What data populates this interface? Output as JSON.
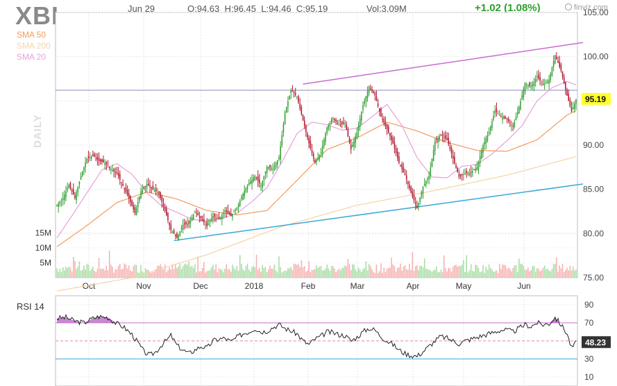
{
  "header": {
    "ticker": "XBI",
    "date": "Jun 29",
    "ohlc": "O:94.63  H:96.45  L:94.46  C:95.19",
    "volume": "Vol:3.09M",
    "change": "+1.02 (1.08%)",
    "brand": "finviz.com"
  },
  "legend": [
    {
      "label": "SMA 50",
      "color": "#f29a5c"
    },
    {
      "label": "SMA 200",
      "color": "#f6d2a6"
    },
    {
      "label": "SMA 20",
      "color": "#e7a0dc"
    }
  ],
  "side_label": "DAILY",
  "colors": {
    "up": "#2e9e2e",
    "down": "#b0142a",
    "vol_up": "#a7dba2",
    "vol_down": "#f4b0ae",
    "channel_top": "#c86ad2",
    "channel_bottom": "#3aa7d8",
    "hline": "#8a8ab8"
  },
  "chart_data": [
    {
      "type": "candlestick",
      "ylim": [
        75,
        105
      ],
      "y_ticks": [
        "105.00",
        "100.00",
        "95.00",
        "90.00",
        "85.00",
        "80.00",
        "75.00"
      ],
      "y_tick_values": [
        105,
        100,
        95,
        90,
        85,
        80,
        75
      ],
      "x_ticks": [
        "Oct",
        "Nov",
        "Dec",
        "2018",
        "Feb",
        "Mar",
        "Apr",
        "May",
        "Jun"
      ],
      "last_price_label": "95.19",
      "last_price": 95.19,
      "horizontal_line": 96.2,
      "volume_ticks": [
        "15M",
        "10M",
        "5M"
      ],
      "volume_tick_values": [
        15,
        10,
        5
      ],
      "price_anchors": [
        [
          0,
          83.2
        ],
        [
          4,
          84.0
        ],
        [
          8,
          85.5
        ],
        [
          12,
          84.0
        ],
        [
          16,
          86.5
        ],
        [
          20,
          88.5
        ],
        [
          24,
          88.8
        ],
        [
          28,
          88.2
        ],
        [
          32,
          88.0
        ],
        [
          36,
          87.3
        ],
        [
          40,
          86.8
        ],
        [
          44,
          85.4
        ],
        [
          48,
          84.0
        ],
        [
          52,
          82.3
        ],
        [
          56,
          84.8
        ],
        [
          60,
          85.6
        ],
        [
          64,
          85.0
        ],
        [
          68,
          84.5
        ],
        [
          72,
          82.6
        ],
        [
          76,
          80.4
        ],
        [
          80,
          79.5
        ],
        [
          84,
          81.0
        ],
        [
          88,
          81.1
        ],
        [
          92,
          82.5
        ],
        [
          96,
          81.7
        ],
        [
          100,
          80.8
        ],
        [
          104,
          82.0
        ],
        [
          108,
          81.6
        ],
        [
          112,
          82.6
        ],
        [
          116,
          82.0
        ],
        [
          120,
          82.9
        ],
        [
          124,
          84.5
        ],
        [
          128,
          85.7
        ],
        [
          132,
          86.5
        ],
        [
          136,
          85.4
        ],
        [
          140,
          87.6
        ],
        [
          144,
          87.3
        ],
        [
          148,
          88.6
        ],
        [
          152,
          93.7
        ],
        [
          156,
          96.2
        ],
        [
          160,
          95.5
        ],
        [
          164,
          92.8
        ],
        [
          168,
          90.2
        ],
        [
          172,
          88.0
        ],
        [
          176,
          89.2
        ],
        [
          180,
          92.0
        ],
        [
          184,
          93.0
        ],
        [
          188,
          92.3
        ],
        [
          192,
          92.5
        ],
        [
          196,
          89.5
        ],
        [
          200,
          91.5
        ],
        [
          204,
          94.5
        ],
        [
          208,
          96.6
        ],
        [
          212,
          95.6
        ],
        [
          216,
          93.2
        ],
        [
          220,
          91.8
        ],
        [
          224,
          90.2
        ],
        [
          228,
          88.0
        ],
        [
          232,
          86.6
        ],
        [
          236,
          84.6
        ],
        [
          240,
          82.9
        ],
        [
          244,
          85.3
        ],
        [
          248,
          86.5
        ],
        [
          252,
          90.4
        ],
        [
          256,
          91.2
        ],
        [
          260,
          90.6
        ],
        [
          264,
          88.5
        ],
        [
          268,
          86.4
        ],
        [
          272,
          86.8
        ],
        [
          276,
          86.9
        ],
        [
          280,
          87.5
        ],
        [
          284,
          90.0
        ],
        [
          288,
          91.5
        ],
        [
          292,
          93.9
        ],
        [
          296,
          93.2
        ],
        [
          300,
          92.9
        ],
        [
          304,
          92.1
        ],
        [
          308,
          94.3
        ],
        [
          312,
          97.0
        ],
        [
          316,
          96.6
        ],
        [
          320,
          97.8
        ],
        [
          324,
          96.8
        ],
        [
          328,
          97.4
        ],
        [
          332,
          100.2
        ],
        [
          336,
          98.4
        ],
        [
          340,
          95.6
        ],
        [
          343,
          93.8
        ],
        [
          346,
          95.19
        ]
      ],
      "sma20_anchors": [
        [
          0,
          79.5
        ],
        [
          10,
          82.0
        ],
        [
          20,
          84.6
        ],
        [
          30,
          87.2
        ],
        [
          40,
          87.9
        ],
        [
          50,
          86.7
        ],
        [
          60,
          84.6
        ],
        [
          70,
          83.1
        ],
        [
          80,
          82.4
        ],
        [
          90,
          81.6
        ],
        [
          100,
          81.4
        ],
        [
          110,
          81.7
        ],
        [
          120,
          82.3
        ],
        [
          130,
          83.6
        ],
        [
          140,
          85.2
        ],
        [
          150,
          88.1
        ],
        [
          160,
          91.3
        ],
        [
          170,
          92.6
        ],
        [
          180,
          92.3
        ],
        [
          190,
          91.7
        ],
        [
          200,
          91.9
        ],
        [
          210,
          93.2
        ],
        [
          220,
          94.6
        ],
        [
          230,
          92.2
        ],
        [
          240,
          88.6
        ],
        [
          250,
          86.4
        ],
        [
          260,
          86.3
        ],
        [
          270,
          87.6
        ],
        [
          280,
          87.8
        ],
        [
          290,
          89.0
        ],
        [
          300,
          90.5
        ],
        [
          310,
          92.2
        ],
        [
          320,
          95.0
        ],
        [
          330,
          96.5
        ],
        [
          340,
          97.2
        ],
        [
          346,
          96.8
        ]
      ],
      "sma50_anchors": [
        [
          0,
          78.5
        ],
        [
          20,
          80.9
        ],
        [
          40,
          83.5
        ],
        [
          60,
          84.7
        ],
        [
          80,
          83.9
        ],
        [
          100,
          82.6
        ],
        [
          120,
          82.1
        ],
        [
          140,
          82.6
        ],
        [
          160,
          86.0
        ],
        [
          180,
          89.5
        ],
        [
          200,
          90.8
        ],
        [
          220,
          92.6
        ],
        [
          240,
          91.6
        ],
        [
          260,
          90.3
        ],
        [
          280,
          89.4
        ],
        [
          300,
          89.3
        ],
        [
          320,
          90.6
        ],
        [
          330,
          92.0
        ],
        [
          340,
          93.4
        ],
        [
          346,
          93.9
        ]
      ],
      "sma200_anchors": [
        [
          0,
          73.5
        ],
        [
          50,
          75.0
        ],
        [
          100,
          77.6
        ],
        [
          150,
          80.8
        ],
        [
          200,
          83.2
        ],
        [
          250,
          84.8
        ],
        [
          300,
          86.6
        ],
        [
          346,
          88.7
        ]
      ],
      "channel_top": [
        [
          164,
          96.9
        ],
        [
          350,
          101.6
        ]
      ],
      "channel_bottom": [
        [
          78,
          79.2
        ],
        [
          350,
          85.6
        ]
      ]
    },
    {
      "type": "line",
      "title": "RSI 14",
      "ylim": [
        0,
        100
      ],
      "y_ticks": [
        "90",
        "70",
        "50",
        "30",
        "10"
      ],
      "y_tick_values": [
        90,
        70,
        50,
        30,
        10
      ],
      "overbought": 70,
      "oversold": 30,
      "midline": 50,
      "last_value_label": "48.23",
      "last_value": 48.23,
      "anchors": [
        [
          0,
          75
        ],
        [
          6,
          76
        ],
        [
          12,
          72
        ],
        [
          18,
          70
        ],
        [
          24,
          75
        ],
        [
          28,
          77
        ],
        [
          34,
          76
        ],
        [
          40,
          69
        ],
        [
          44,
          66
        ],
        [
          50,
          57
        ],
        [
          54,
          48
        ],
        [
          58,
          38
        ],
        [
          62,
          34
        ],
        [
          66,
          38
        ],
        [
          70,
          46
        ],
        [
          74,
          52
        ],
        [
          76,
          56
        ],
        [
          80,
          45
        ],
        [
          84,
          40
        ],
        [
          88,
          36
        ],
        [
          92,
          40
        ],
        [
          96,
          44
        ],
        [
          100,
          42
        ],
        [
          104,
          50
        ],
        [
          108,
          52
        ],
        [
          112,
          53
        ],
        [
          116,
          49
        ],
        [
          120,
          54
        ],
        [
          124,
          58
        ],
        [
          128,
          60
        ],
        [
          132,
          64
        ],
        [
          136,
          60
        ],
        [
          140,
          61
        ],
        [
          144,
          65
        ],
        [
          148,
          68
        ],
        [
          152,
          64
        ],
        [
          156,
          61
        ],
        [
          160,
          58
        ],
        [
          164,
          50
        ],
        [
          168,
          46
        ],
        [
          172,
          52
        ],
        [
          176,
          55
        ],
        [
          180,
          60
        ],
        [
          184,
          59
        ],
        [
          188,
          57
        ],
        [
          192,
          56
        ],
        [
          196,
          50
        ],
        [
          200,
          54
        ],
        [
          204,
          60
        ],
        [
          208,
          64
        ],
        [
          212,
          62
        ],
        [
          216,
          55
        ],
        [
          220,
          50
        ],
        [
          224,
          46
        ],
        [
          228,
          40
        ],
        [
          232,
          36
        ],
        [
          236,
          34
        ],
        [
          240,
          33
        ],
        [
          244,
          38
        ],
        [
          248,
          44
        ],
        [
          252,
          50
        ],
        [
          256,
          55
        ],
        [
          260,
          53
        ],
        [
          264,
          50
        ],
        [
          268,
          47
        ],
        [
          272,
          50
        ],
        [
          276,
          52
        ],
        [
          280,
          54
        ],
        [
          284,
          56
        ],
        [
          288,
          58
        ],
        [
          292,
          60
        ],
        [
          296,
          62
        ],
        [
          300,
          62
        ],
        [
          304,
          60
        ],
        [
          308,
          64
        ],
        [
          312,
          68
        ],
        [
          316,
          66
        ],
        [
          320,
          70
        ],
        [
          324,
          68
        ],
        [
          328,
          69
        ],
        [
          332,
          76
        ],
        [
          336,
          68
        ],
        [
          340,
          58
        ],
        [
          343,
          42
        ],
        [
          346,
          48
        ]
      ]
    }
  ]
}
